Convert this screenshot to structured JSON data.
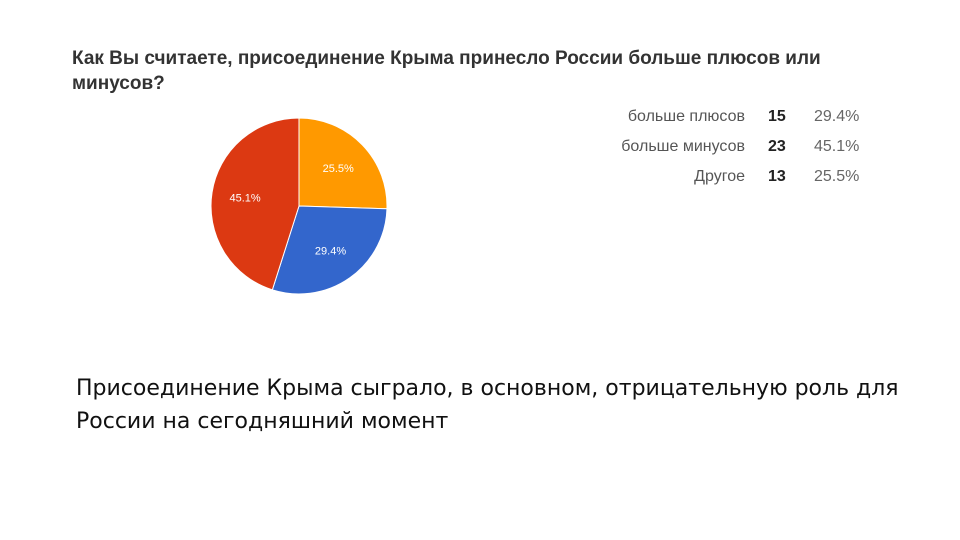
{
  "title": "Как Вы считаете, присоединение Крыма принесло России больше плюсов или минусов?",
  "caption": "Присоединение Крыма сыграло, в основном, отрицательную роль для России на сегодняшний момент",
  "chart_data": {
    "type": "pie",
    "title": "Как Вы считаете, присоединение Крыма принесло России больше плюсов или минусов?",
    "legend_placement": "right",
    "slices": [
      {
        "label": "больше плюсов",
        "count": 15,
        "percent": "29.4%",
        "value": 29.4,
        "color": "#3366cc"
      },
      {
        "label": "больше минусов",
        "count": 23,
        "percent": "45.1%",
        "value": 45.1,
        "color": "#dc3912"
      },
      {
        "label": "Другое",
        "count": 13,
        "percent": "25.5%",
        "value": 25.5,
        "color": "#ff9900"
      }
    ]
  }
}
